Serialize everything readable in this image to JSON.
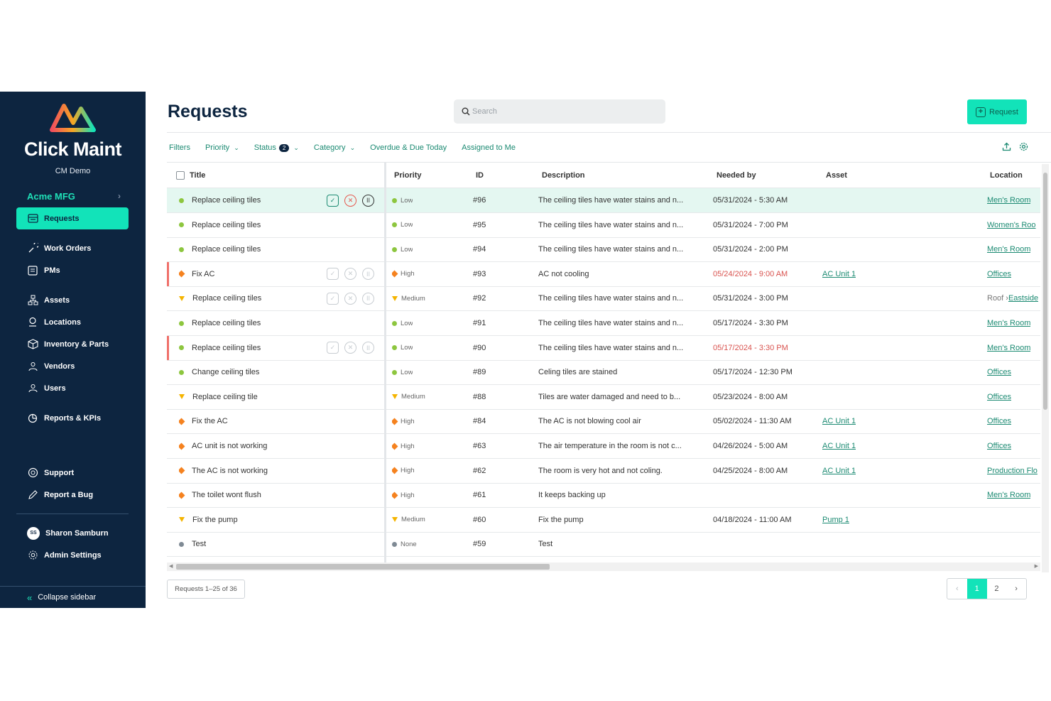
{
  "app": {
    "brand": "Click Maint",
    "brand_sub": "CM Demo",
    "org": "Acme MFG",
    "colors": {
      "sidebar": "#0d2540",
      "accent": "#12e3b9",
      "link": "#1b8a72",
      "overdue": "#d9534f"
    }
  },
  "sidebar": {
    "items": [
      {
        "label": "Requests",
        "icon": "requests-icon"
      },
      {
        "label": "Work Orders",
        "icon": "wrench-icon"
      },
      {
        "label": "PMs",
        "icon": "calendar-list-icon"
      },
      {
        "label": "Assets",
        "icon": "assets-tree-icon"
      },
      {
        "label": "Locations",
        "icon": "location-pin-icon"
      },
      {
        "label": "Inventory & Parts",
        "icon": "box-icon"
      },
      {
        "label": "Vendors",
        "icon": "vendors-icon"
      },
      {
        "label": "Users",
        "icon": "users-icon"
      },
      {
        "label": "Reports & KPIs",
        "icon": "pie-chart-icon"
      },
      {
        "label": "Support",
        "icon": "lifebuoy-icon"
      },
      {
        "label": "Report a Bug",
        "icon": "pencil-icon"
      }
    ],
    "user": {
      "name": "Sharon Samburn",
      "initials": "SS"
    },
    "admin": "Admin Settings",
    "collapse": "Collapse sidebar"
  },
  "header": {
    "title": "Requests",
    "search_placeholder": "Search",
    "new_button": "Request"
  },
  "filters": {
    "filters": "Filters",
    "priority": "Priority",
    "status": "Status",
    "status_count": "2",
    "category": "Category",
    "overdue": "Overdue & Due Today",
    "assigned": "Assigned to Me"
  },
  "table": {
    "columns": {
      "title": "Title",
      "priority": "Priority",
      "id": "ID",
      "description": "Description",
      "needed_by": "Needed by",
      "asset": "Asset",
      "location": "Location"
    },
    "rows": [
      {
        "title": "Replace ceiling tiles",
        "priority": "Low",
        "id": "#96",
        "description": "The ceiling tiles have water stains and n...",
        "needed_by": "05/31/2024 - 5:30 AM",
        "asset": "",
        "location_prefix": "",
        "location": "Men's Room"
      },
      {
        "title": "Replace ceiling tiles",
        "priority": "Low",
        "id": "#95",
        "description": "The ceiling tiles have water stains and n...",
        "needed_by": "05/31/2024 - 7:00 PM",
        "asset": "",
        "location_prefix": "",
        "location": "Women's Roo"
      },
      {
        "title": "Replace ceiling tiles",
        "priority": "Low",
        "id": "#94",
        "description": "The ceiling tiles have water stains and n...",
        "needed_by": "05/31/2024 - 2:00 PM",
        "asset": "",
        "location_prefix": "",
        "location": "Men's Room"
      },
      {
        "title": "Fix AC",
        "priority": "High",
        "id": "#93",
        "description": "AC not cooling",
        "needed_by": "05/24/2024 - 9:00 AM",
        "asset": "AC Unit 1",
        "location_prefix": "",
        "location": "Offices"
      },
      {
        "title": "Replace ceiling tiles",
        "priority": "Medium",
        "id": "#92",
        "description": "The ceiling tiles have water stains and n...",
        "needed_by": "05/31/2024 - 3:00 PM",
        "asset": "",
        "location_prefix": "Roof › ",
        "location": "Eastside"
      },
      {
        "title": "Replace ceiling tiles",
        "priority": "Low",
        "id": "#91",
        "description": "The ceiling tiles have water stains and n...",
        "needed_by": "05/17/2024 - 3:30 PM",
        "asset": "",
        "location_prefix": "",
        "location": "Men's Room"
      },
      {
        "title": "Replace ceiling tiles",
        "priority": "Low",
        "id": "#90",
        "description": "The ceiling tiles have water stains and n...",
        "needed_by": "05/17/2024 - 3:30 PM",
        "asset": "",
        "location_prefix": "",
        "location": "Men's Room"
      },
      {
        "title": "Change ceiling tiles",
        "priority": "Low",
        "id": "#89",
        "description": "Celing tiles are stained",
        "needed_by": "05/17/2024 - 12:30 PM",
        "asset": "",
        "location_prefix": "",
        "location": "Offices"
      },
      {
        "title": "Replace ceiling tile",
        "priority": "Medium",
        "id": "#88",
        "description": "Tiles are water damaged and need to b...",
        "needed_by": "05/23/2024 - 8:00 AM",
        "asset": "",
        "location_prefix": "",
        "location": "Offices"
      },
      {
        "title": "Fix the AC",
        "priority": "High",
        "id": "#84",
        "description": "The AC is not blowing cool air",
        "needed_by": "05/02/2024 - 11:30 AM",
        "asset": "AC Unit 1",
        "location_prefix": "",
        "location": "Offices"
      },
      {
        "title": "AC unit is not working",
        "priority": "High",
        "id": "#63",
        "description": "The air temperature in the room is not c...",
        "needed_by": "04/26/2024 - 5:00 AM",
        "asset": "AC Unit 1",
        "location_prefix": "",
        "location": "Offices"
      },
      {
        "title": "The AC is not working",
        "priority": "High",
        "id": "#62",
        "description": "The room is very hot and not coling.",
        "needed_by": "04/25/2024 - 8:00 AM",
        "asset": "AC Unit 1",
        "location_prefix": "",
        "location": "Production Flo"
      },
      {
        "title": "The toilet wont flush",
        "priority": "High",
        "id": "#61",
        "description": "It keeps backing up",
        "needed_by": "",
        "asset": "",
        "location_prefix": "",
        "location": "Men's Room"
      },
      {
        "title": "Fix the pump",
        "priority": "Medium",
        "id": "#60",
        "description": "Fix the pump",
        "needed_by": "04/18/2024 - 11:00 AM",
        "asset": "Pump 1",
        "location_prefix": "",
        "location": ""
      },
      {
        "title": "Test",
        "priority": "None",
        "id": "#59",
        "description": "Test",
        "needed_by": "",
        "asset": "",
        "location_prefix": "",
        "location": ""
      }
    ]
  },
  "footer": {
    "count": "Requests 1–25 of 36",
    "pages": [
      "1",
      "2"
    ],
    "current_page": "1"
  }
}
